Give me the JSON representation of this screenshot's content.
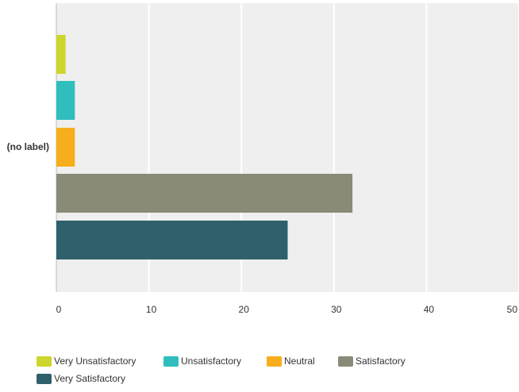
{
  "chart_data": {
    "type": "bar",
    "orientation": "horizontal",
    "categories": [
      "(no label)"
    ],
    "series": [
      {
        "name": "Very Unsatisfactory",
        "values": [
          1
        ],
        "color": "#cdd62c"
      },
      {
        "name": "Unsatisfactory",
        "values": [
          2
        ],
        "color": "#2fbebd"
      },
      {
        "name": "Neutral",
        "values": [
          2
        ],
        "color": "#f6ae1c"
      },
      {
        "name": "Satisfactory",
        "values": [
          32
        ],
        "color": "#8a8a78"
      },
      {
        "name": "Very Satisfactory",
        "values": [
          25
        ],
        "color": "#2f606c"
      }
    ],
    "xlim": [
      0,
      50
    ],
    "xticks": [
      "0",
      "10",
      "20",
      "30",
      "40",
      "50"
    ],
    "grid": true,
    "legend_position": "bottom",
    "plot_background": "#efefef",
    "title": "",
    "xlabel": "",
    "ylabel": ""
  }
}
